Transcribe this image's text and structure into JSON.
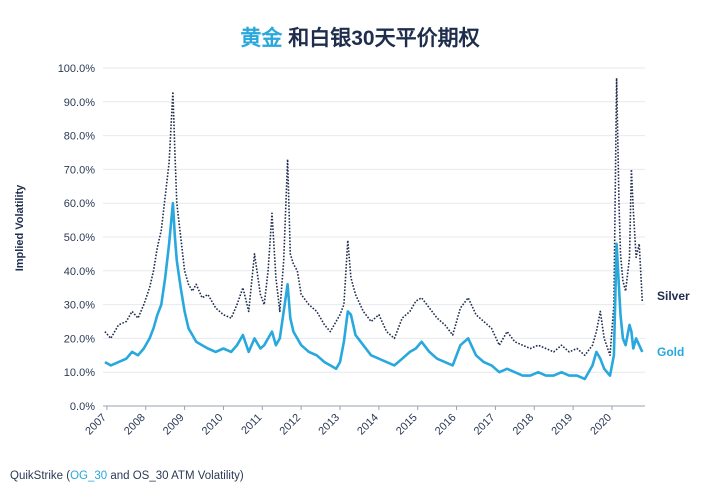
{
  "title": {
    "accent": "黄金",
    "rest": " 和白银30天平价期权"
  },
  "source": {
    "prefix": "QuikStrike (",
    "link": "OG_30",
    "suffix": " and OS_30 ATM Volatility)"
  },
  "colors": {
    "silver": "#1f2d4d",
    "gold": "#29a8dd",
    "grid": "#e6e9ee",
    "axis": "#9aa3b2"
  },
  "chart_data": {
    "type": "line",
    "title": "黄金 和白银30天平价期权",
    "ylabel": "Implied Volatility",
    "xlabel": "",
    "xlim": [
      2006.9,
      2020.85
    ],
    "ylim": [
      0,
      100
    ],
    "ytick_values": [
      0,
      10,
      20,
      30,
      40,
      50,
      60,
      70,
      80,
      90,
      100
    ],
    "ytick_labels": [
      "0.0%",
      "10.0%",
      "20.0%",
      "30.0%",
      "40.0%",
      "50.0%",
      "60.0%",
      "70.0%",
      "80.0%",
      "90.0%",
      "100.0%"
    ],
    "xtick_values": [
      2007,
      2008,
      2009,
      2010,
      2011,
      2012,
      2013,
      2014,
      2015,
      2016,
      2017,
      2018,
      2019,
      2020
    ],
    "xtick_labels": [
      "2007",
      "2008",
      "2009",
      "2010",
      "2011",
      "2012",
      "2013",
      "2014",
      "2015",
      "2016",
      "2017",
      "2018",
      "2019",
      "2020"
    ],
    "grid": true,
    "legend": "right, at series end",
    "series": [
      {
        "name": "Silver",
        "style": "dotted",
        "x": [
          2006.95,
          2007.1,
          2007.3,
          2007.5,
          2007.65,
          2007.8,
          2007.95,
          2008.1,
          2008.2,
          2008.3,
          2008.4,
          2008.5,
          2008.6,
          2008.7,
          2008.75,
          2008.8,
          2008.9,
          2009.0,
          2009.1,
          2009.2,
          2009.3,
          2009.45,
          2009.6,
          2009.8,
          2010.0,
          2010.2,
          2010.35,
          2010.5,
          2010.65,
          2010.8,
          2010.95,
          2011.05,
          2011.15,
          2011.25,
          2011.35,
          2011.45,
          2011.55,
          2011.65,
          2011.72,
          2011.8,
          2011.9,
          2012.0,
          2012.2,
          2012.4,
          2012.6,
          2012.75,
          2012.9,
          2013.0,
          2013.1,
          2013.2,
          2013.28,
          2013.4,
          2013.6,
          2013.8,
          2014.0,
          2014.2,
          2014.4,
          2014.6,
          2014.8,
          2014.95,
          2015.1,
          2015.3,
          2015.5,
          2015.7,
          2015.9,
          2016.1,
          2016.3,
          2016.5,
          2016.7,
          2016.9,
          2017.1,
          2017.3,
          2017.5,
          2017.7,
          2017.9,
          2018.1,
          2018.3,
          2018.5,
          2018.7,
          2018.9,
          2019.1,
          2019.3,
          2019.5,
          2019.6,
          2019.7,
          2019.8,
          2019.95,
          2020.05,
          2020.12,
          2020.18,
          2020.22,
          2020.28,
          2020.35,
          2020.45,
          2020.5,
          2020.55,
          2020.62,
          2020.7,
          2020.78
        ],
        "values": [
          22,
          20,
          24,
          25,
          28,
          26,
          30,
          35,
          40,
          47,
          52,
          62,
          72,
          93,
          75,
          60,
          50,
          40,
          36,
          34,
          36,
          32,
          33,
          29,
          27,
          26,
          30,
          35,
          28,
          45,
          33,
          30,
          40,
          57,
          38,
          28,
          43,
          73,
          45,
          42,
          40,
          33,
          30,
          28,
          24,
          22,
          25,
          27,
          30,
          49,
          38,
          33,
          28,
          25,
          27,
          22,
          20,
          26,
          28,
          31,
          32,
          29,
          26,
          24,
          21,
          29,
          32,
          27,
          25,
          23,
          18,
          22,
          19,
          18,
          17,
          18,
          17,
          16,
          18,
          16,
          17,
          15,
          18,
          22,
          28,
          20,
          15,
          30,
          97,
          60,
          45,
          37,
          34,
          44,
          70,
          58,
          44,
          48,
          31
        ]
      },
      {
        "name": "Gold",
        "style": "solid",
        "x": [
          2006.95,
          2007.1,
          2007.3,
          2007.5,
          2007.65,
          2007.8,
          2007.95,
          2008.1,
          2008.2,
          2008.3,
          2008.4,
          2008.5,
          2008.6,
          2008.7,
          2008.75,
          2008.8,
          2008.9,
          2009.0,
          2009.1,
          2009.2,
          2009.3,
          2009.45,
          2009.6,
          2009.8,
          2010.0,
          2010.2,
          2010.35,
          2010.5,
          2010.65,
          2010.8,
          2010.95,
          2011.05,
          2011.15,
          2011.25,
          2011.35,
          2011.45,
          2011.55,
          2011.65,
          2011.72,
          2011.8,
          2011.9,
          2012.0,
          2012.2,
          2012.4,
          2012.6,
          2012.75,
          2012.9,
          2013.0,
          2013.1,
          2013.2,
          2013.28,
          2013.4,
          2013.6,
          2013.8,
          2014.0,
          2014.2,
          2014.4,
          2014.6,
          2014.8,
          2014.95,
          2015.1,
          2015.3,
          2015.5,
          2015.7,
          2015.9,
          2016.1,
          2016.3,
          2016.5,
          2016.7,
          2016.9,
          2017.1,
          2017.3,
          2017.5,
          2017.7,
          2017.9,
          2018.1,
          2018.3,
          2018.5,
          2018.7,
          2018.9,
          2019.1,
          2019.3,
          2019.5,
          2019.6,
          2019.7,
          2019.8,
          2019.95,
          2020.05,
          2020.12,
          2020.18,
          2020.22,
          2020.28,
          2020.35,
          2020.45,
          2020.5,
          2020.55,
          2020.62,
          2020.7,
          2020.78
        ],
        "values": [
          13,
          12,
          13,
          14,
          16,
          15,
          17,
          20,
          23,
          27,
          30,
          38,
          48,
          60,
          50,
          43,
          35,
          28,
          23,
          21,
          19,
          18,
          17,
          16,
          17,
          16,
          18,
          21,
          16,
          20,
          17,
          18,
          20,
          22,
          18,
          20,
          28,
          36,
          26,
          22,
          20,
          18,
          16,
          15,
          13,
          12,
          11,
          13,
          19,
          28,
          27,
          21,
          18,
          15,
          14,
          13,
          12,
          14,
          16,
          17,
          19,
          16,
          14,
          13,
          12,
          18,
          20,
          15,
          13,
          12,
          10,
          11,
          10,
          9,
          9,
          10,
          9,
          9,
          10,
          9,
          9,
          8,
          12,
          16,
          14,
          11,
          9,
          15,
          48,
          35,
          27,
          20,
          18,
          24,
          22,
          17,
          20,
          18,
          16
        ]
      }
    ]
  }
}
